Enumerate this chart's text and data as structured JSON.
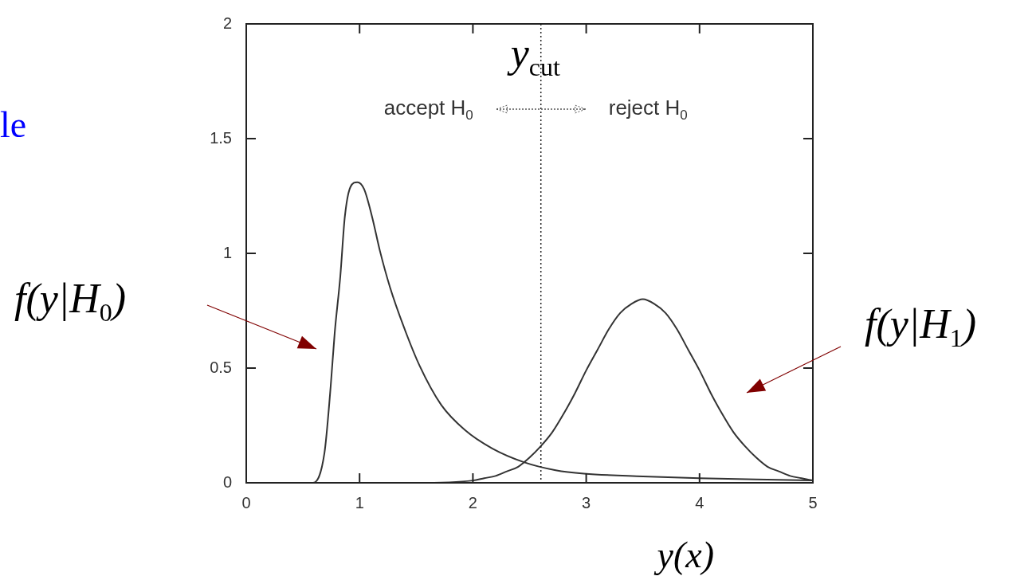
{
  "chart_data": {
    "type": "line",
    "xlabel": "y(x)",
    "xlim": [
      0,
      5
    ],
    "xticks": [
      0,
      1,
      2,
      3,
      4,
      5
    ],
    "ylim": [
      0,
      2
    ],
    "yticks": [
      0,
      0.5,
      1,
      1.5,
      2
    ],
    "marker": "none",
    "line_style": "solid",
    "series": [
      {
        "color": "#333333",
        "x": [
          0,
          0.59,
          0.69,
          0.745,
          0.78,
          0.83,
          0.87,
          0.92,
          0.98,
          1.04,
          1.11,
          1.18,
          1.27,
          1.39,
          1.53,
          1.72,
          1.93,
          2.17,
          2.45,
          2.73,
          2.98,
          3.5,
          4,
          4.5,
          5
        ],
        "values": [
          0,
          0,
          0.13,
          0.42,
          0.65,
          0.9,
          1.16,
          1.29,
          1.31,
          1.28,
          1.16,
          1.01,
          0.85,
          0.68,
          0.51,
          0.34,
          0.23,
          0.15,
          0.09,
          0.055,
          0.04,
          0.028,
          0.02,
          0.015,
          0.01
        ]
      },
      {
        "color": "#333333",
        "x": [
          0,
          1,
          1.5,
          2,
          2.1,
          2.2,
          2.3,
          2.4,
          2.5,
          2.6,
          2.7,
          2.8,
          2.9,
          3,
          3.1,
          3.2,
          3.3,
          3.4,
          3.5,
          3.6,
          3.7,
          3.8,
          3.9,
          4,
          4.1,
          4.2,
          4.3,
          4.4,
          4.5,
          4.6,
          4.7,
          4.8,
          4.9,
          5
        ],
        "values": [
          0,
          0,
          0,
          0.01,
          0.02,
          0.03,
          0.05,
          0.07,
          0.11,
          0.16,
          0.22,
          0.3,
          0.39,
          0.49,
          0.58,
          0.67,
          0.74,
          0.78,
          0.8,
          0.78,
          0.74,
          0.67,
          0.58,
          0.49,
          0.39,
          0.3,
          0.22,
          0.16,
          0.11,
          0.07,
          0.05,
          0.03,
          0.02,
          0.01
        ]
      }
    ],
    "ref_lines": [
      {
        "axis": "x",
        "value": 2.6,
        "label": "y$_{cut}$",
        "line_style": "dotted"
      }
    ],
    "annotations": [
      "accept H$_{0}$",
      "reject H$_{0}$",
      "le",
      "f(y|H$_{0}$)",
      "f(y|H$_{1}$)"
    ]
  }
}
